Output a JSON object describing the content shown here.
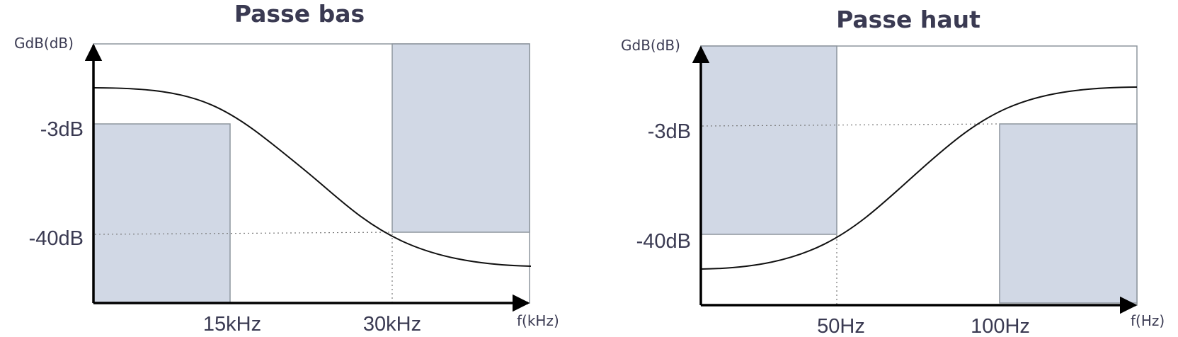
{
  "panels": [
    {
      "title": "Passe bas",
      "ylabel": "GdB(dB)",
      "xlabel": "f(kHz)",
      "y_ticks": [
        "-3dB",
        "-40dB"
      ],
      "x_ticks": [
        "15kHz",
        "30kHz"
      ],
      "kind": "low-pass"
    },
    {
      "title": "Passe haut",
      "ylabel": "GdB(dB)",
      "xlabel": "f(Hz)",
      "y_ticks": [
        "-3dB",
        "-40dB"
      ],
      "x_ticks": [
        "50Hz",
        "100Hz"
      ],
      "kind": "high-pass"
    }
  ],
  "colors": {
    "zone_fill": "#d1d8e5",
    "zone_stroke": "#8d969e",
    "text": "#3a3a52",
    "curve": "#111111"
  }
}
